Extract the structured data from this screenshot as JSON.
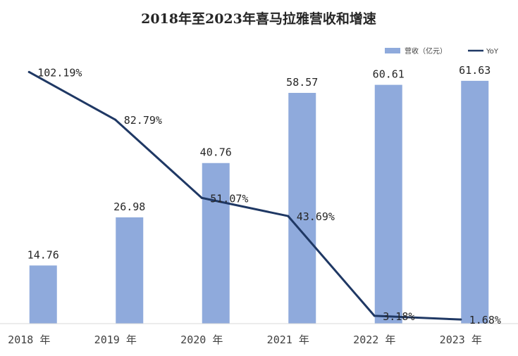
{
  "chart_data": {
    "type": "bar",
    "title": "2018年至2023年喜马拉雅营收和增速",
    "categories": [
      "2018 年",
      "2019 年",
      "2020 年",
      "2021 年",
      "2022 年",
      "2023 年"
    ],
    "series": [
      {
        "name": "营收（亿元）",
        "type": "bar",
        "axis": "left",
        "color": "#8faadc",
        "values": [
          14.76,
          26.98,
          40.76,
          58.57,
          60.61,
          61.63
        ],
        "labels": [
          "14.76",
          "26.98",
          "40.76",
          "58.57",
          "60.61",
          "61.63"
        ]
      },
      {
        "name": "YoY",
        "type": "line",
        "axis": "right",
        "color": "#1f3864",
        "values": [
          102.19,
          82.79,
          51.07,
          43.69,
          3.18,
          1.68
        ],
        "labels": [
          "102.19%",
          "82.79%",
          "51.07%",
          "43.69%",
          "3.18%",
          "1.68%"
        ]
      }
    ],
    "ylim_left": [
      0,
      75
    ],
    "ylim_right": [
      0,
      120
    ],
    "grid": false,
    "legend_position": "top-right"
  }
}
